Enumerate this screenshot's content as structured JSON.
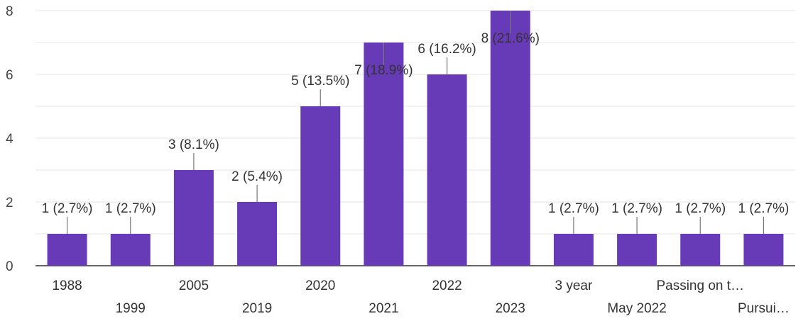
{
  "chart_data": {
    "type": "bar",
    "categories": [
      "1988",
      "1999",
      "2005",
      "2019",
      "2020",
      "2021",
      "2022",
      "2023",
      "3 year",
      "May 2022",
      "Passing on t…",
      "Pursui…"
    ],
    "values": [
      1,
      1,
      3,
      2,
      5,
      7,
      6,
      8,
      1,
      1,
      1,
      1
    ],
    "data_labels": [
      "1 (2.7%)",
      "1 (2.7%)",
      "3 (8.1%)",
      "2 (5.4%)",
      "5 (13.5%)",
      "7 (18.9%)",
      "6 (16.2%)",
      "8 (21.6%)",
      "1 (2.7%)",
      "1 (2.7%)",
      "1 (2.7%)",
      "1 (2.7%)"
    ],
    "ylim": [
      0,
      8
    ],
    "yticks": [
      "0",
      "2",
      "4",
      "6",
      "8"
    ],
    "ytick_values": [
      0,
      2,
      4,
      6,
      8
    ],
    "grid": true,
    "bar_color": "#673ab7",
    "title": "",
    "xlabel": "",
    "ylabel": ""
  }
}
